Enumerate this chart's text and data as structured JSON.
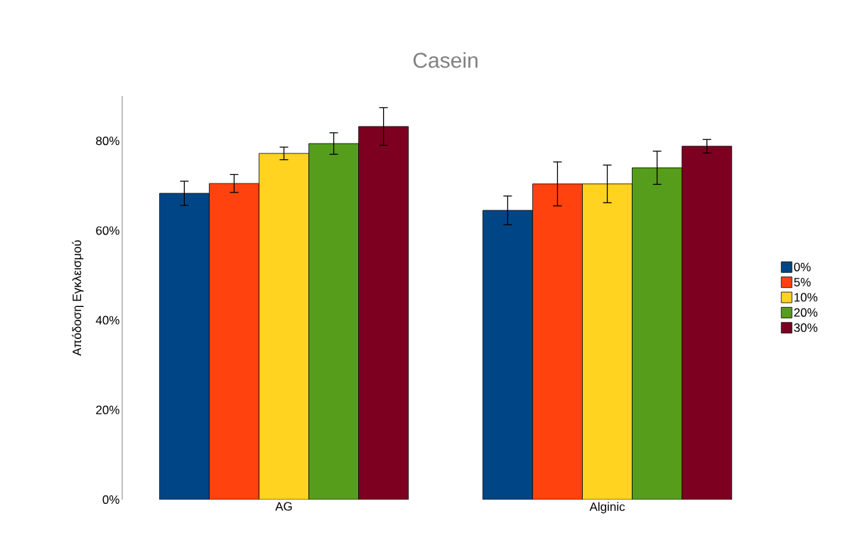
{
  "chart_data": {
    "type": "bar",
    "title": "Casein",
    "ylabel": "Απόδοση Εγκλεισμού",
    "categories": [
      "AG",
      "Alginic"
    ],
    "series": [
      {
        "name": "0%",
        "color": "#004586",
        "values": [
          68.3,
          64.5
        ],
        "errors": [
          2.7,
          3.2
        ]
      },
      {
        "name": "5%",
        "color": "#ff420e",
        "values": [
          70.5,
          70.4
        ],
        "errors": [
          2.0,
          4.9
        ]
      },
      {
        "name": "10%",
        "color": "#ffd320",
        "values": [
          77.2,
          70.4
        ],
        "errors": [
          1.4,
          4.2
        ]
      },
      {
        "name": "20%",
        "color": "#579d1c",
        "values": [
          79.4,
          74.0
        ],
        "errors": [
          2.4,
          3.7
        ]
      },
      {
        "name": "30%",
        "color": "#7e0021",
        "values": [
          83.2,
          78.8
        ],
        "errors": [
          4.2,
          1.5
        ]
      }
    ],
    "ylim": [
      0,
      90
    ],
    "yticks": [
      {
        "value": 0,
        "label": "0%"
      },
      {
        "value": 20,
        "label": "20%"
      },
      {
        "value": 40,
        "label": "40%"
      },
      {
        "value": 60,
        "label": "60%"
      },
      {
        "value": 80,
        "label": "80%"
      }
    ],
    "grid": false,
    "legend": "right"
  }
}
